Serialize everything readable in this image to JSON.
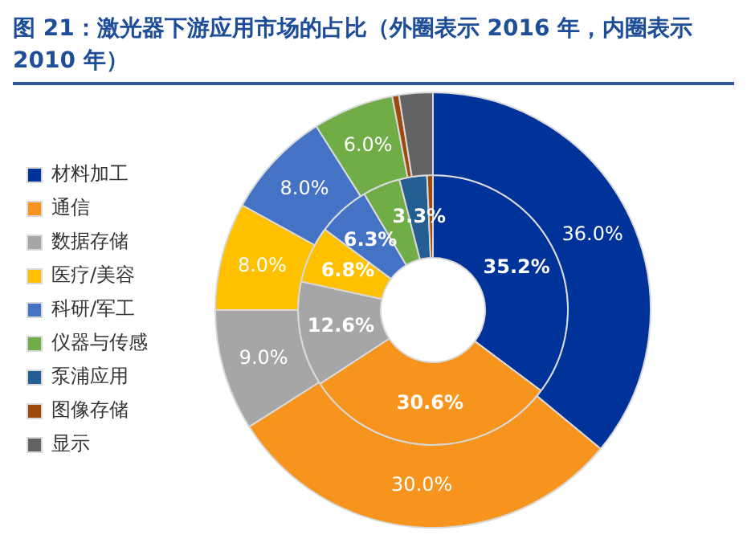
{
  "chart_data": {
    "type": "donut",
    "title": "图 21：激光器下游应用市场的占比（外圈表示 2016 年，内圈表示 2010 年）",
    "categories": [
      "材料加工",
      "通信",
      "数据存储",
      "医疗/美容",
      "科研/军工",
      "仪器与传感",
      "泵浦应用",
      "图像存储",
      "显示"
    ],
    "colors": [
      "#003399",
      "#f7941d",
      "#a6a6a6",
      "#ffc000",
      "#4472c4",
      "#70ad47",
      "#255e91",
      "#9e480e",
      "#636363"
    ],
    "series": [
      {
        "values": [
          36.0,
          30.0,
          9.0,
          8.0,
          8.0,
          6.0,
          0,
          0.5,
          2.5
        ],
        "value_labels": [
          "36.0%",
          "30.0%",
          "9.0%",
          "8.0%",
          "8.0%",
          "6.0%",
          null,
          null,
          null
        ]
      },
      {
        "values": [
          35.2,
          30.6,
          12.6,
          6.8,
          6.3,
          4.5,
          3.3,
          0.7,
          0
        ],
        "value_labels": [
          "35.2%",
          "30.6%",
          "12.6%",
          "6.8%",
          "6.3%",
          null,
          "3.3%",
          null,
          null
        ]
      }
    ],
    "legend": "left"
  }
}
